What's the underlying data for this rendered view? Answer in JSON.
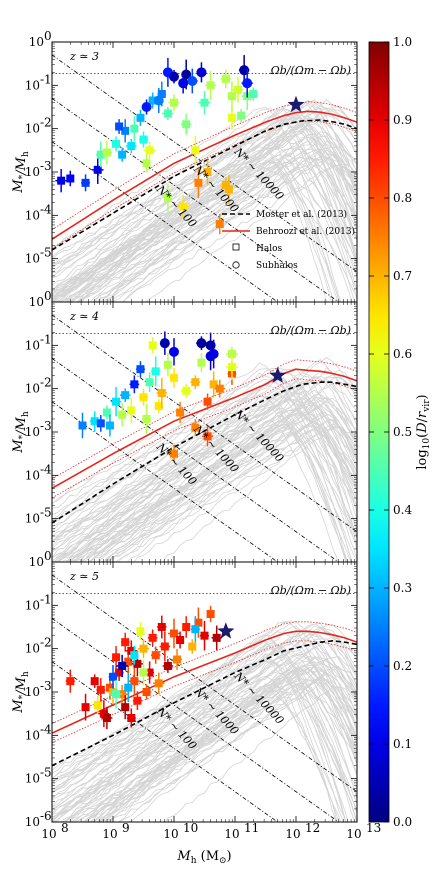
{
  "figure": {
    "xlabel": "M_h (M_⊙)",
    "ylabel": "M_*/M_h",
    "xlim": [
      8,
      13
    ],
    "ylim": [
      -6,
      0
    ],
    "x_ticks": [
      "10^8",
      "10^9",
      "10^10",
      "10^11",
      "10^12",
      "10^13"
    ],
    "y_ticks": [
      "10^0",
      "10^-1",
      "10^-2",
      "10^-3",
      "10^-4",
      "10^-5",
      "10^0"
    ]
  },
  "colorbar": {
    "label": "log10(D/r_vir)",
    "range": [
      0.0,
      1.0
    ],
    "ticks": [
      "1.0",
      "0.9",
      "0.8",
      "0.7",
      "0.6",
      "0.5",
      "0.4",
      "0.3",
      "0.2",
      "0.1",
      "0.0"
    ]
  },
  "legend": {
    "items": [
      "Moster et al. (2013)",
      "Behroozi et al. (2013)",
      "Halos",
      "Subhalos"
    ]
  },
  "annotations": {
    "baryon_fraction": "Ωb/(Ωm − Ωb)",
    "Nstar_lines": [
      "N* ~ 10000",
      "N* ~ 1000",
      "N* ~ 100"
    ]
  },
  "chart_data": [
    {
      "type": "scatter",
      "panel": "z ≃ 3",
      "omega_b_ratio": 0.187,
      "moster": {
        "x": [
          8.0,
          9.0,
          10.0,
          11.0,
          11.5,
          11.8,
          12.1,
          12.4,
          12.6,
          12.8,
          13.0
        ],
        "y": [
          -4.8,
          -3.95,
          -3.1,
          -2.4,
          -2.05,
          -1.9,
          -1.82,
          -1.8,
          -1.84,
          -1.9,
          -2.0
        ]
      },
      "behroozi": {
        "x": [
          8.0,
          9.0,
          10.0,
          11.0,
          11.5,
          11.8,
          12.0,
          12.2,
          12.4,
          12.6,
          12.8,
          13.0
        ],
        "y": [
          -4.55,
          -3.65,
          -2.8,
          -2.15,
          -1.85,
          -1.7,
          -1.63,
          -1.6,
          -1.62,
          -1.67,
          -1.75,
          -1.85
        ]
      },
      "star": {
        "x": 12.0,
        "y": -1.45
      },
      "points": [
        {
          "x": 8.15,
          "y": -3.2,
          "c": 0.1,
          "s": "halo"
        },
        {
          "x": 8.3,
          "y": -3.15,
          "c": 0.12,
          "s": "halo"
        },
        {
          "x": 8.55,
          "y": -3.25,
          "c": 0.18,
          "s": "halo"
        },
        {
          "x": 8.75,
          "y": -2.95,
          "c": 0.1,
          "s": "halo"
        },
        {
          "x": 8.8,
          "y": -2.6,
          "c": 0.45,
          "s": "halo"
        },
        {
          "x": 8.9,
          "y": -2.55,
          "c": 0.55,
          "s": "halo"
        },
        {
          "x": 9.05,
          "y": -2.35,
          "c": 0.4,
          "s": "halo"
        },
        {
          "x": 9.15,
          "y": -2.6,
          "c": 0.3,
          "s": "halo"
        },
        {
          "x": 9.2,
          "y": -2.05,
          "c": 0.25,
          "s": "halo"
        },
        {
          "x": 9.3,
          "y": -2.4,
          "c": 0.35,
          "s": "halo"
        },
        {
          "x": 9.35,
          "y": -2.0,
          "c": 0.45,
          "s": "halo"
        },
        {
          "x": 9.45,
          "y": -1.75,
          "c": 0.3,
          "s": "halo"
        },
        {
          "x": 9.5,
          "y": -2.25,
          "c": 0.4,
          "s": "halo"
        },
        {
          "x": 9.55,
          "y": -2.8,
          "c": 0.55,
          "s": "halo"
        },
        {
          "x": 9.6,
          "y": -2.5,
          "c": 0.6,
          "s": "halo"
        },
        {
          "x": 9.1,
          "y": -1.95,
          "c": 0.2,
          "s": "halo"
        },
        {
          "x": 9.65,
          "y": -1.35,
          "c": 0.3,
          "s": "halo"
        },
        {
          "x": 9.8,
          "y": -1.2,
          "c": 0.25,
          "s": "halo"
        },
        {
          "x": 9.9,
          "y": -1.65,
          "c": 0.45,
          "s": "halo"
        },
        {
          "x": 10.0,
          "y": -1.4,
          "c": 0.55,
          "s": "halo"
        },
        {
          "x": 10.2,
          "y": -1.9,
          "c": 0.5,
          "s": "halo"
        },
        {
          "x": 10.35,
          "y": -2.5,
          "c": 0.6,
          "s": "halo"
        },
        {
          "x": 10.5,
          "y": -1.4,
          "c": 0.45,
          "s": "halo"
        },
        {
          "x": 10.6,
          "y": -1.0,
          "c": 0.55,
          "s": "halo"
        },
        {
          "x": 10.4,
          "y": -3.25,
          "c": 0.75,
          "s": "halo"
        },
        {
          "x": 10.55,
          "y": -3.0,
          "c": 0.7,
          "s": "halo"
        },
        {
          "x": 10.85,
          "y": -3.3,
          "c": 0.7,
          "s": "halo"
        },
        {
          "x": 10.95,
          "y": -1.75,
          "c": 0.6,
          "s": "halo"
        },
        {
          "x": 10.95,
          "y": -1.25,
          "c": 0.55,
          "s": "halo"
        },
        {
          "x": 11.05,
          "y": -1.1,
          "c": 0.58,
          "s": "halo"
        },
        {
          "x": 10.85,
          "y": -0.85,
          "c": 0.55,
          "s": "halo"
        },
        {
          "x": 11.1,
          "y": -1.7,
          "c": 0.5,
          "s": "halo"
        },
        {
          "x": 10.75,
          "y": -4.2,
          "c": 0.75,
          "s": "halo"
        },
        {
          "x": 10.9,
          "y": -3.4,
          "c": 0.7,
          "s": "halo"
        },
        {
          "x": 9.9,
          "y": -3.6,
          "c": 0.55,
          "s": "halo"
        },
        {
          "x": 10.15,
          "y": -3.8,
          "c": 0.65,
          "s": "halo"
        },
        {
          "x": 11.2,
          "y": -1.25,
          "c": 0.5,
          "s": "halo"
        },
        {
          "x": 11.3,
          "y": -1.2,
          "c": 0.45,
          "s": "halo"
        },
        {
          "x": 9.9,
          "y": -0.7,
          "c": 0.15,
          "s": "sub"
        },
        {
          "x": 10.0,
          "y": -0.8,
          "c": 0.05,
          "s": "sub"
        },
        {
          "x": 10.2,
          "y": -0.75,
          "c": 0.02,
          "s": "sub"
        },
        {
          "x": 10.3,
          "y": -0.9,
          "c": 0.2,
          "s": "sub"
        },
        {
          "x": 10.45,
          "y": -0.7,
          "c": 0.08,
          "s": "sub"
        },
        {
          "x": 10.15,
          "y": -0.95,
          "c": 0.1,
          "s": "sub"
        },
        {
          "x": 11.15,
          "y": -0.65,
          "c": 0.03,
          "s": "sub"
        },
        {
          "x": 11.2,
          "y": -0.95,
          "c": 0.15,
          "s": "sub"
        },
        {
          "x": 9.75,
          "y": -1.35,
          "c": 0.25,
          "s": "sub"
        },
        {
          "x": 9.55,
          "y": -1.5,
          "c": 0.15,
          "s": "sub"
        }
      ]
    },
    {
      "type": "scatter",
      "panel": "z ≃ 4",
      "omega_b_ratio": 0.187,
      "moster": {
        "x": [
          8.0,
          9.0,
          10.0,
          11.0,
          11.5,
          11.8,
          12.1,
          12.4,
          12.6,
          12.8,
          13.0
        ],
        "y": [
          -5.1,
          -4.2,
          -3.35,
          -2.6,
          -2.25,
          -2.05,
          -1.9,
          -1.85,
          -1.85,
          -1.9,
          -1.95
        ]
      },
      "behroozi": {
        "x": [
          8.0,
          9.0,
          10.0,
          11.0,
          11.5,
          11.8,
          12.0,
          12.2,
          12.4,
          12.6,
          12.8,
          13.0
        ],
        "y": [
          -4.3,
          -3.5,
          -2.75,
          -2.2,
          -1.9,
          -1.65,
          -1.55,
          -1.58,
          -1.6,
          -1.65,
          -1.72,
          -1.82
        ]
      },
      "star": {
        "x": 11.7,
        "y": -1.7
      },
      "points": [
        {
          "x": 8.5,
          "y": -2.85,
          "c": 0.25,
          "s": "halo"
        },
        {
          "x": 8.7,
          "y": -2.75,
          "c": 0.35,
          "s": "halo"
        },
        {
          "x": 8.8,
          "y": -2.8,
          "c": 0.2,
          "s": "halo"
        },
        {
          "x": 8.9,
          "y": -2.55,
          "c": 0.45,
          "s": "halo"
        },
        {
          "x": 8.95,
          "y": -2.85,
          "c": 0.3,
          "s": "halo"
        },
        {
          "x": 9.05,
          "y": -2.3,
          "c": 0.35,
          "s": "halo"
        },
        {
          "x": 9.15,
          "y": -2.6,
          "c": 0.55,
          "s": "halo"
        },
        {
          "x": 9.2,
          "y": -2.15,
          "c": 0.3,
          "s": "halo"
        },
        {
          "x": 9.3,
          "y": -2.5,
          "c": 0.6,
          "s": "halo"
        },
        {
          "x": 9.35,
          "y": -1.9,
          "c": 0.15,
          "s": "halo"
        },
        {
          "x": 9.45,
          "y": -1.55,
          "c": 0.2,
          "s": "halo"
        },
        {
          "x": 9.5,
          "y": -2.2,
          "c": 0.65,
          "s": "halo"
        },
        {
          "x": 9.55,
          "y": -2.7,
          "c": 0.55,
          "s": "halo"
        },
        {
          "x": 9.6,
          "y": -1.85,
          "c": 0.45,
          "s": "halo"
        },
        {
          "x": 9.65,
          "y": -1.0,
          "c": 0.6,
          "s": "halo"
        },
        {
          "x": 9.7,
          "y": -1.6,
          "c": 0.4,
          "s": "halo"
        },
        {
          "x": 9.75,
          "y": -2.4,
          "c": 0.65,
          "s": "halo"
        },
        {
          "x": 9.8,
          "y": -2.1,
          "c": 0.7,
          "s": "halo"
        },
        {
          "x": 9.9,
          "y": -1.45,
          "c": 0.55,
          "s": "halo"
        },
        {
          "x": 10.0,
          "y": -1.75,
          "c": 0.65,
          "s": "halo"
        },
        {
          "x": 10.1,
          "y": -2.55,
          "c": 0.75,
          "s": "halo"
        },
        {
          "x": 10.2,
          "y": -2.05,
          "c": 0.6,
          "s": "halo"
        },
        {
          "x": 10.35,
          "y": -1.85,
          "c": 0.7,
          "s": "halo"
        },
        {
          "x": 10.45,
          "y": -1.4,
          "c": 0.55,
          "s": "halo"
        },
        {
          "x": 10.55,
          "y": -2.3,
          "c": 0.8,
          "s": "halo"
        },
        {
          "x": 10.65,
          "y": -1.9,
          "c": 0.7,
          "s": "halo"
        },
        {
          "x": 10.75,
          "y": -2.0,
          "c": 0.75,
          "s": "halo"
        },
        {
          "x": 10.95,
          "y": -1.65,
          "c": 0.8,
          "s": "halo"
        },
        {
          "x": 10.95,
          "y": -1.2,
          "c": 0.55,
          "s": "halo"
        },
        {
          "x": 10.95,
          "y": -1.5,
          "c": 0.6,
          "s": "halo"
        },
        {
          "x": 10.35,
          "y": -2.9,
          "c": 0.75,
          "s": "halo"
        },
        {
          "x": 10.55,
          "y": -3.1,
          "c": 0.8,
          "s": "halo"
        },
        {
          "x": 10.0,
          "y": -3.5,
          "c": 0.75,
          "s": "halo"
        },
        {
          "x": 9.85,
          "y": -0.95,
          "c": 0.05,
          "s": "sub"
        },
        {
          "x": 10.0,
          "y": -1.15,
          "c": 0.1,
          "s": "sub"
        },
        {
          "x": 10.45,
          "y": -0.95,
          "c": 0.03,
          "s": "sub"
        },
        {
          "x": 10.6,
          "y": -1.0,
          "c": 0.02,
          "s": "sub"
        },
        {
          "x": 10.6,
          "y": -1.25,
          "c": 0.08,
          "s": "sub"
        },
        {
          "x": 10.65,
          "y": -1.2,
          "c": 0.1,
          "s": "sub"
        }
      ]
    },
    {
      "type": "scatter",
      "panel": "z ≃ 5",
      "omega_b_ratio": 0.187,
      "moster": {
        "x": [
          8.0,
          9.0,
          10.0,
          11.0,
          11.5,
          11.8,
          12.1,
          12.4,
          12.6,
          12.8,
          13.0
        ],
        "y": [
          -4.7,
          -4.0,
          -3.25,
          -2.55,
          -2.25,
          -2.05,
          -1.95,
          -1.85,
          -1.82,
          -1.85,
          -1.9
        ]
      },
      "behroozi": {
        "x": [
          8.0,
          9.0,
          10.0,
          11.0,
          11.5,
          11.8,
          12.0,
          12.2,
          12.4,
          12.6,
          12.8,
          13.0
        ],
        "y": [
          -3.95,
          -3.3,
          -2.65,
          -2.1,
          -1.8,
          -1.65,
          -1.6,
          -1.6,
          -1.63,
          -1.68,
          -1.75,
          -1.85
        ]
      },
      "star": {
        "x": 10.85,
        "y": -1.6
      },
      "points": [
        {
          "x": 8.3,
          "y": -2.75,
          "c": 0.85,
          "s": "halo"
        },
        {
          "x": 8.55,
          "y": -3.35,
          "c": 0.9,
          "s": "halo"
        },
        {
          "x": 8.7,
          "y": -2.75,
          "c": 0.9,
          "s": "halo"
        },
        {
          "x": 8.75,
          "y": -3.3,
          "c": 0.65,
          "s": "halo"
        },
        {
          "x": 8.8,
          "y": -2.95,
          "c": 0.85,
          "s": "halo"
        },
        {
          "x": 8.85,
          "y": -3.5,
          "c": 0.9,
          "s": "halo"
        },
        {
          "x": 8.9,
          "y": -3.6,
          "c": 0.95,
          "s": "halo"
        },
        {
          "x": 8.95,
          "y": -2.9,
          "c": 0.8,
          "s": "halo"
        },
        {
          "x": 9.0,
          "y": -3.0,
          "c": 0.7,
          "s": "halo"
        },
        {
          "x": 9.05,
          "y": -2.2,
          "c": 0.85,
          "s": "halo"
        },
        {
          "x": 9.1,
          "y": -2.55,
          "c": 0.9,
          "s": "halo"
        },
        {
          "x": 9.15,
          "y": -3.05,
          "c": 0.75,
          "s": "halo"
        },
        {
          "x": 9.2,
          "y": -1.85,
          "c": 0.85,
          "s": "halo"
        },
        {
          "x": 9.25,
          "y": -2.3,
          "c": 0.8,
          "s": "halo"
        },
        {
          "x": 9.3,
          "y": -2.05,
          "c": 0.9,
          "s": "halo"
        },
        {
          "x": 9.35,
          "y": -2.75,
          "c": 0.8,
          "s": "halo"
        },
        {
          "x": 9.4,
          "y": -2.35,
          "c": 0.95,
          "s": "halo"
        },
        {
          "x": 9.45,
          "y": -1.6,
          "c": 0.6,
          "s": "halo"
        },
        {
          "x": 9.5,
          "y": -2.0,
          "c": 0.7,
          "s": "halo"
        },
        {
          "x": 9.55,
          "y": -3.0,
          "c": 0.8,
          "s": "halo"
        },
        {
          "x": 9.6,
          "y": -2.55,
          "c": 0.9,
          "s": "halo"
        },
        {
          "x": 9.65,
          "y": -1.75,
          "c": 0.85,
          "s": "halo"
        },
        {
          "x": 9.7,
          "y": -2.15,
          "c": 0.8,
          "s": "halo"
        },
        {
          "x": 9.75,
          "y": -2.8,
          "c": 0.75,
          "s": "halo"
        },
        {
          "x": 9.8,
          "y": -1.5,
          "c": 0.9,
          "s": "halo"
        },
        {
          "x": 9.85,
          "y": -1.95,
          "c": 0.85,
          "s": "halo"
        },
        {
          "x": 9.9,
          "y": -2.4,
          "c": 0.95,
          "s": "halo"
        },
        {
          "x": 10.0,
          "y": -1.65,
          "c": 0.8,
          "s": "halo"
        },
        {
          "x": 10.05,
          "y": -2.25,
          "c": 0.75,
          "s": "halo"
        },
        {
          "x": 10.1,
          "y": -1.8,
          "c": 0.9,
          "s": "halo"
        },
        {
          "x": 10.2,
          "y": -1.5,
          "c": 0.85,
          "s": "halo"
        },
        {
          "x": 10.3,
          "y": -1.95,
          "c": 0.7,
          "s": "halo"
        },
        {
          "x": 10.4,
          "y": -1.4,
          "c": 0.8,
          "s": "halo"
        },
        {
          "x": 10.5,
          "y": -1.7,
          "c": 0.9,
          "s": "halo"
        },
        {
          "x": 10.6,
          "y": -1.2,
          "c": 0.8,
          "s": "halo"
        },
        {
          "x": 10.7,
          "y": -1.75,
          "c": 0.95,
          "s": "halo"
        },
        {
          "x": 9.3,
          "y": -3.6,
          "c": 0.9,
          "s": "halo"
        },
        {
          "x": 9.4,
          "y": -3.2,
          "c": 0.85,
          "s": "halo"
        },
        {
          "x": 9.2,
          "y": -3.35,
          "c": 0.95,
          "s": "halo"
        },
        {
          "x": 9.0,
          "y": -2.65,
          "c": 0.2,
          "s": "halo"
        },
        {
          "x": 9.15,
          "y": -2.4,
          "c": 0.05,
          "s": "halo"
        },
        {
          "x": 9.25,
          "y": -2.9,
          "c": 0.3,
          "s": "halo"
        },
        {
          "x": 9.05,
          "y": -3.05,
          "c": 0.45,
          "s": "halo"
        },
        {
          "x": 9.35,
          "y": -2.15,
          "c": 0.35,
          "s": "halo"
        },
        {
          "x": 9.5,
          "y": -2.55,
          "c": 0.55,
          "s": "halo"
        },
        {
          "x": 10.35,
          "y": -1.55,
          "c": 0.3,
          "s": "halo"
        }
      ]
    }
  ]
}
